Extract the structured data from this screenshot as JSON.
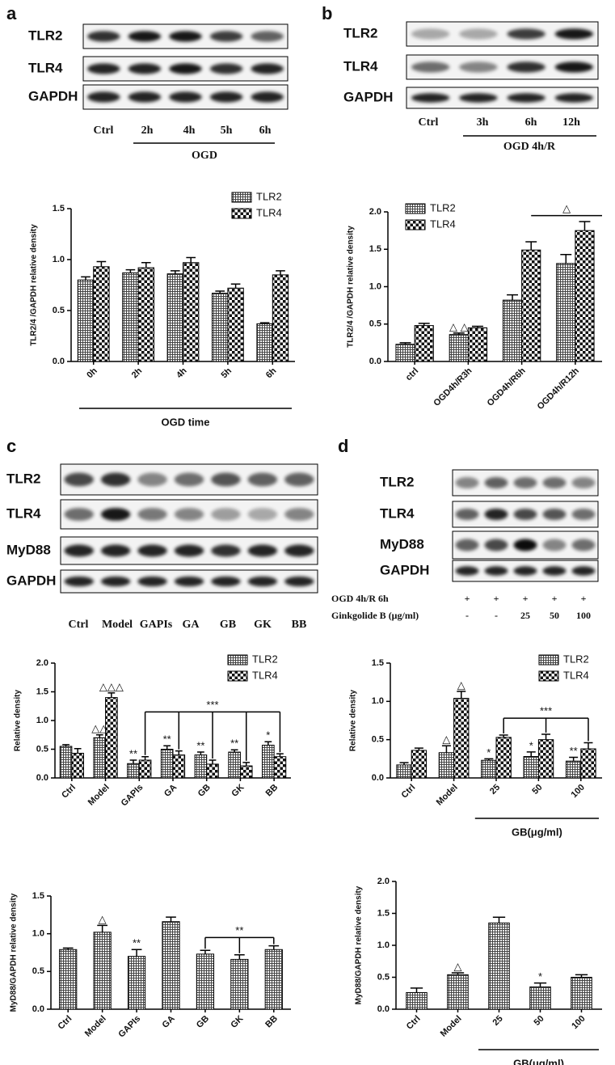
{
  "blots": [
    {
      "letter": "a",
      "rows": [
        "TLR2",
        "TLR4",
        "GAPDH"
      ],
      "lanes": [
        "Ctrl",
        "2h",
        "4h",
        "5h",
        "6h"
      ],
      "group": "OGD"
    },
    {
      "letter": "b",
      "rows": [
        "TLR2",
        "TLR4",
        "GAPDH"
      ],
      "lanes": [
        "Ctrl",
        "3h",
        "6h",
        "12h"
      ],
      "group": "OGD 4h/R"
    },
    {
      "letter": "c",
      "rows": [
        "TLR2",
        "TLR4",
        "MyD88",
        "GAPDH"
      ],
      "lanes": [
        "Ctrl",
        "Model",
        "GAPIs",
        "GA",
        "GB",
        "GK",
        "BB"
      ]
    },
    {
      "letter": "d",
      "rows": [
        "TLR2",
        "TLR4",
        "MyD88",
        "GAPDH"
      ],
      "conditions": [
        {
          "label": "OGD 4h/R 6h",
          "marks": [
            "+",
            "+",
            "+",
            "+",
            "+"
          ]
        },
        {
          "label": "Ginkgolide B (μg/ml)",
          "marks": [
            "-",
            "-",
            "25",
            "50",
            "100"
          ]
        }
      ]
    }
  ],
  "chart_data": [
    {
      "type": "bar",
      "ylabel": "TLR2/4 /GAPDH relative density",
      "xlabel": "OGD time",
      "categories": [
        "0h",
        "2h",
        "4h",
        "5h",
        "6h"
      ],
      "series": [
        {
          "name": "TLR2",
          "fill": "hatch",
          "values": [
            0.8,
            0.87,
            0.86,
            0.67,
            0.37
          ],
          "errors": [
            0.03,
            0.03,
            0.03,
            0.02,
            0.01
          ]
        },
        {
          "name": "TLR4",
          "fill": "checker",
          "values": [
            0.93,
            0.92,
            0.97,
            0.72,
            0.85
          ],
          "errors": [
            0.05,
            0.05,
            0.05,
            0.04,
            0.04
          ]
        }
      ],
      "ylim": [
        0,
        1.5
      ],
      "yticks": [
        {
          "value": 0,
          "label": "0.0"
        },
        0.5,
        {
          "value": 1,
          "label": "1.0"
        },
        1.5
      ],
      "legend": "upper right"
    },
    {
      "type": "bar",
      "ylabel": "TLR2/4 /GAPDH relative density",
      "categories": [
        "ctrl",
        "OGD4h/R3h",
        "OGD4h/R6h",
        "OGD4h/R12h"
      ],
      "series": [
        {
          "name": "TLR2",
          "fill": "hatch",
          "values": [
            0.23,
            0.36,
            0.82,
            1.31
          ],
          "errors": [
            0.02,
            0.02,
            0.07,
            0.12
          ]
        },
        {
          "name": "TLR4",
          "fill": "checker",
          "values": [
            0.48,
            0.45,
            1.49,
            1.75
          ],
          "errors": [
            0.03,
            0.02,
            0.11,
            0.12
          ]
        }
      ],
      "ylim": [
        0,
        2
      ],
      "yticks": [
        {
          "value": 0,
          "label": "0.0"
        },
        0.5,
        {
          "value": 1,
          "label": "1.0"
        },
        1.5,
        {
          "value": 2,
          "label": "2.0"
        }
      ],
      "annotations": [
        "△ △",
        "△"
      ],
      "legend": "upper left"
    },
    {
      "type": "bar",
      "ylabel": "Relative density",
      "categories": [
        "Ctrl",
        "Model",
        "GAPIs",
        "GA",
        "GB",
        "GK",
        "BB"
      ],
      "series": [
        {
          "name": "TLR2",
          "fill": "hatch",
          "values": [
            0.55,
            0.7,
            0.25,
            0.5,
            0.4,
            0.45,
            0.57
          ],
          "errors": [
            0.03,
            0.05,
            0.06,
            0.06,
            0.05,
            0.04,
            0.06
          ]
        },
        {
          "name": "TLR4",
          "fill": "checker",
          "values": [
            0.43,
            1.4,
            0.31,
            0.4,
            0.24,
            0.21,
            0.37
          ],
          "errors": [
            0.08,
            0.08,
            0.06,
            0.07,
            0.07,
            0.06,
            0.05
          ]
        }
      ],
      "ylim": [
        0,
        2
      ],
      "yticks": [
        {
          "value": 0,
          "label": "0.0"
        },
        0.5,
        {
          "value": 1,
          "label": "1.0"
        },
        1.5,
        {
          "value": 2,
          "label": "2.0"
        }
      ],
      "annotations": [
        "△△",
        "△△△",
        "**",
        "**",
        "**",
        "**",
        "*",
        "***"
      ],
      "legend": "upper right"
    },
    {
      "type": "bar",
      "ylabel": "Relative density",
      "xlabel": "GB(μg/ml)",
      "categories": [
        "Ctrl",
        "Model",
        "25",
        "50",
        "100"
      ],
      "series": [
        {
          "name": "TLR2",
          "fill": "hatch",
          "values": [
            0.17,
            0.33,
            0.23,
            0.28,
            0.22
          ],
          "errors": [
            0.03,
            0.09,
            0.02,
            0.06,
            0.05
          ]
        },
        {
          "name": "TLR4",
          "fill": "checker",
          "values": [
            0.36,
            1.04,
            0.53,
            0.5,
            0.38
          ],
          "errors": [
            0.03,
            0.09,
            0.03,
            0.07,
            0.08
          ]
        }
      ],
      "ylim": [
        0,
        1.5
      ],
      "yticks": [
        {
          "value": 0,
          "label": "0.0"
        },
        0.5,
        {
          "value": 1,
          "label": "1.0"
        },
        1.5
      ],
      "annotations": [
        "△",
        "△",
        "*",
        "*",
        "**",
        "***"
      ],
      "legend": "upper right"
    },
    {
      "type": "bar",
      "ylabel": "MyD88/GAPDH relative density",
      "categories": [
        "Ctrl",
        "Model",
        "GAPIs",
        "GA",
        "GB",
        "GK",
        "BB"
      ],
      "fill": "hatch",
      "values": [
        0.79,
        1.02,
        0.7,
        1.16,
        0.73,
        0.66,
        0.79
      ],
      "errors": [
        0.02,
        0.09,
        0.09,
        0.06,
        0.05,
        0.06,
        0.05
      ],
      "ylim": [
        0,
        1.5
      ],
      "yticks": [
        {
          "value": 0,
          "label": "0.0"
        },
        0.5,
        {
          "value": 1,
          "label": "1.0"
        },
        1.5
      ],
      "annotations": [
        "△",
        "**",
        "**"
      ]
    },
    {
      "type": "bar",
      "ylabel": "MyD88/GAPDH relative density",
      "xlabel": "GB(μg/ml)",
      "categories": [
        "Ctrl",
        "Model",
        "25",
        "50",
        "100"
      ],
      "fill": "hatch",
      "values": [
        0.26,
        0.54,
        1.35,
        0.35,
        0.5
      ],
      "errors": [
        0.07,
        0.03,
        0.09,
        0.06,
        0.04
      ],
      "ylim": [
        0,
        2
      ],
      "yticks": [
        {
          "value": 0,
          "label": "0.0"
        },
        0.5,
        {
          "value": 1,
          "label": "1.0"
        },
        1.5,
        {
          "value": 2,
          "label": "2.0"
        }
      ],
      "annotations": [
        "△",
        "*"
      ]
    }
  ]
}
